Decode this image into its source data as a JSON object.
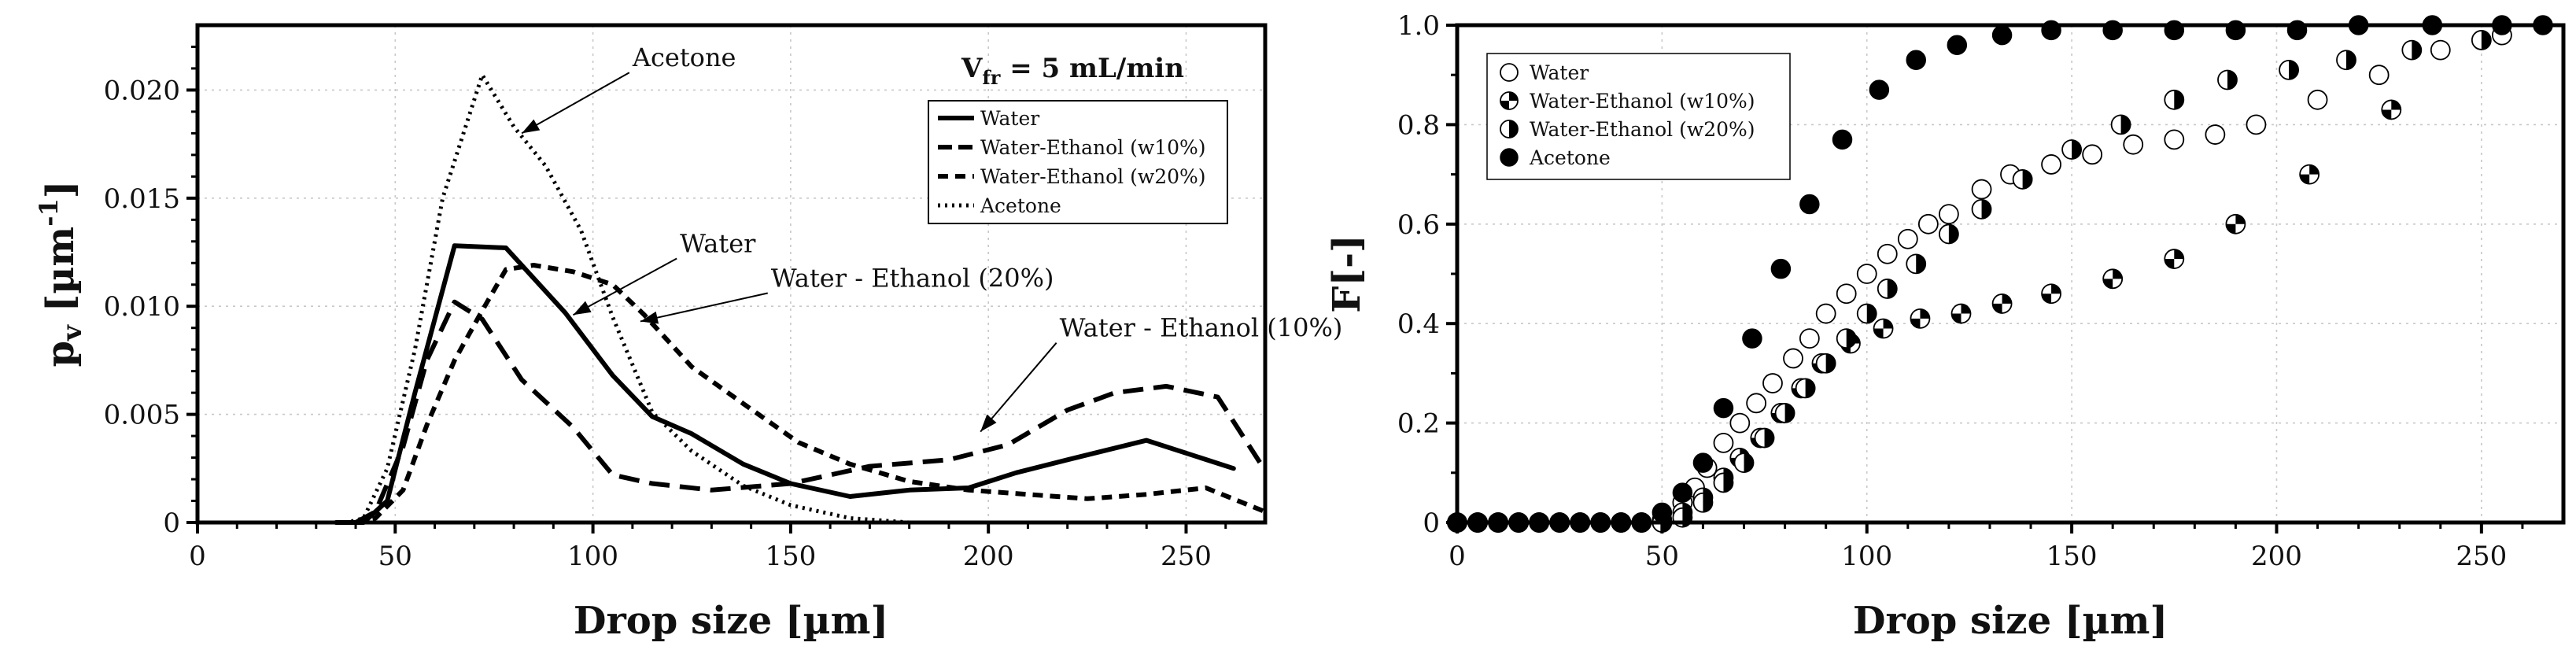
{
  "chart_data": [
    {
      "type": "line",
      "xlabel": "Drop size [µm]",
      "ylabel": "p",
      "ylabel_sub": "v",
      "ylabel_unit": "[µm",
      "ylabel_exp": "-1",
      "ylabel_close": "]",
      "xlim": [
        0,
        270
      ],
      "ylim": [
        0,
        0.023
      ],
      "x_ticks": [
        0,
        50,
        100,
        150,
        200,
        250
      ],
      "x_tick_labels": [
        "0",
        "50",
        "100",
        "150",
        "200",
        "250"
      ],
      "y_ticks": [
        0,
        0.005,
        0.01,
        0.015,
        0.02
      ],
      "y_tick_labels": [
        "0",
        "0.005",
        "0.010",
        "0.015",
        "0.020"
      ],
      "grid": true,
      "condition": {
        "v": "V",
        "sub": "fr",
        "rest": " = 5 mL/min"
      },
      "legend_position": "top-right",
      "series": [
        {
          "name": "Water",
          "style": "solid",
          "x": [
            35,
            42,
            48,
            55,
            65,
            78,
            93,
            105,
            115,
            125,
            138,
            150,
            165,
            180,
            195,
            207,
            220,
            240,
            262
          ],
          "y": [
            0,
            0,
            0.001,
            0.006,
            0.0128,
            0.0127,
            0.0097,
            0.0068,
            0.0049,
            0.0041,
            0.0027,
            0.0018,
            0.0012,
            0.0015,
            0.0016,
            0.0023,
            0.0029,
            0.0038,
            0.0025
          ]
        },
        {
          "name": "Water-Ethanol (w10%)",
          "style": "dashed-long",
          "x": [
            40,
            45,
            52,
            58,
            65,
            72,
            82,
            95,
            105,
            115,
            130,
            150,
            170,
            190,
            205,
            220,
            232,
            245,
            258,
            270
          ],
          "y": [
            0,
            0.0005,
            0.0035,
            0.0075,
            0.0102,
            0.0094,
            0.0066,
            0.0044,
            0.0022,
            0.0018,
            0.0015,
            0.0018,
            0.0026,
            0.0029,
            0.0036,
            0.0052,
            0.006,
            0.0063,
            0.0058,
            0.0024
          ]
        },
        {
          "name": "Water-Ethanol (w20%)",
          "style": "dashed-short",
          "x": [
            40,
            45,
            52,
            58,
            65,
            72,
            78,
            85,
            95,
            105,
            113,
            125,
            138,
            152,
            165,
            180,
            195,
            210,
            225,
            240,
            255,
            270
          ],
          "y": [
            0,
            0.0002,
            0.0015,
            0.0045,
            0.0075,
            0.0098,
            0.0117,
            0.0119,
            0.0116,
            0.011,
            0.0096,
            0.0072,
            0.0055,
            0.0037,
            0.0027,
            0.0019,
            0.0015,
            0.0013,
            0.0011,
            0.0013,
            0.0016,
            0.0005
          ]
        },
        {
          "name": "Acetone",
          "style": "dotted",
          "x": [
            30,
            38,
            42,
            48,
            55,
            62,
            72,
            80,
            88,
            97,
            105,
            115,
            125,
            138,
            150,
            165,
            180,
            195,
            210,
            230,
            250,
            270
          ],
          "y": [
            0,
            0,
            0.0002,
            0.0025,
            0.008,
            0.015,
            0.0207,
            0.0183,
            0.0165,
            0.0135,
            0.0095,
            0.0051,
            0.0033,
            0.0017,
            0.0008,
            0.0002,
            0,
            0,
            0,
            0,
            0,
            0
          ]
        }
      ],
      "annotations": [
        {
          "text": "Acetone",
          "target": [
            82,
            0.018
          ],
          "label_at": [
            110,
            0.0211
          ]
        },
        {
          "text": "Water",
          "target": [
            95,
            0.0096
          ],
          "label_at": [
            122,
            0.0125
          ]
        },
        {
          "text": "Water - Ethanol (20%)",
          "target": [
            112,
            0.0093
          ],
          "label_at": [
            145,
            0.0109
          ]
        },
        {
          "text": "Water - Ethanol (10%)",
          "target": [
            198,
            0.0042
          ],
          "label_at": [
            218,
            0.0086
          ]
        }
      ]
    },
    {
      "type": "scatter",
      "xlabel": "Drop size [µm]",
      "ylabel": "F[-]",
      "xlim": [
        0,
        270
      ],
      "ylim": [
        0,
        1.0
      ],
      "x_ticks": [
        0,
        50,
        100,
        150,
        200,
        250
      ],
      "x_tick_labels": [
        "0",
        "50",
        "100",
        "150",
        "200",
        "250"
      ],
      "y_ticks": [
        0,
        0.2,
        0.4,
        0.6,
        0.8,
        1.0
      ],
      "y_tick_labels": [
        "0",
        "0.2",
        "0.4",
        "0.6",
        "0.8",
        "1.0"
      ],
      "grid": true,
      "legend_position": "top-left",
      "series": [
        {
          "name": "Water",
          "marker": "open-circle",
          "x": [
            0,
            5,
            10,
            15,
            20,
            25,
            30,
            35,
            40,
            45,
            50,
            55,
            58,
            61,
            65,
            69,
            73,
            77,
            82,
            86,
            90,
            95,
            100,
            105,
            110,
            115,
            120,
            128,
            135,
            145,
            155,
            165,
            175,
            185,
            195,
            210,
            225,
            240,
            255
          ],
          "y": [
            0,
            0,
            0,
            0,
            0,
            0,
            0,
            0,
            0,
            0,
            0.005,
            0.04,
            0.07,
            0.11,
            0.16,
            0.2,
            0.24,
            0.28,
            0.33,
            0.37,
            0.42,
            0.46,
            0.5,
            0.54,
            0.57,
            0.6,
            0.62,
            0.67,
            0.7,
            0.72,
            0.74,
            0.76,
            0.77,
            0.78,
            0.8,
            0.85,
            0.9,
            0.95,
            0.98
          ]
        },
        {
          "name": "Water-Ethanol (w10%)",
          "marker": "quarter-circle",
          "x": [
            0,
            5,
            10,
            15,
            20,
            25,
            30,
            35,
            40,
            45,
            50,
            55,
            60,
            65,
            69,
            74,
            79,
            84,
            89,
            96,
            104,
            113,
            123,
            133,
            145,
            160,
            175,
            190,
            208,
            228
          ],
          "y": [
            0,
            0,
            0,
            0,
            0,
            0,
            0,
            0,
            0,
            0,
            0,
            0.02,
            0.05,
            0.09,
            0.13,
            0.17,
            0.22,
            0.27,
            0.32,
            0.36,
            0.39,
            0.41,
            0.42,
            0.44,
            0.46,
            0.49,
            0.53,
            0.6,
            0.7,
            0.83
          ]
        },
        {
          "name": "Water-Ethanol (w20%)",
          "marker": "half-circle",
          "x": [
            0,
            5,
            10,
            15,
            20,
            25,
            30,
            35,
            40,
            45,
            50,
            55,
            60,
            65,
            70,
            75,
            80,
            85,
            90,
            95,
            100,
            105,
            112,
            120,
            128,
            138,
            150,
            162,
            175,
            188,
            203,
            217,
            233,
            250
          ],
          "y": [
            0,
            0,
            0,
            0,
            0,
            0,
            0,
            0,
            0,
            0,
            0,
            0.01,
            0.04,
            0.08,
            0.12,
            0.17,
            0.22,
            0.27,
            0.32,
            0.37,
            0.42,
            0.47,
            0.52,
            0.58,
            0.63,
            0.69,
            0.75,
            0.8,
            0.85,
            0.89,
            0.91,
            0.93,
            0.95,
            0.97
          ]
        },
        {
          "name": "Acetone",
          "marker": "filled-circle",
          "x": [
            0,
            5,
            10,
            15,
            20,
            25,
            30,
            35,
            40,
            45,
            50,
            55,
            60,
            65,
            72,
            79,
            86,
            94,
            103,
            112,
            122,
            133,
            145,
            160,
            175,
            190,
            205,
            220,
            238,
            255,
            265
          ],
          "y": [
            0,
            0,
            0,
            0,
            0,
            0,
            0,
            0,
            0,
            0,
            0.02,
            0.06,
            0.12,
            0.23,
            0.37,
            0.51,
            0.64,
            0.77,
            0.87,
            0.93,
            0.96,
            0.98,
            0.99,
            0.99,
            0.99,
            0.99,
            0.99,
            1.0,
            1.0,
            1.0,
            1.0
          ]
        }
      ]
    }
  ]
}
